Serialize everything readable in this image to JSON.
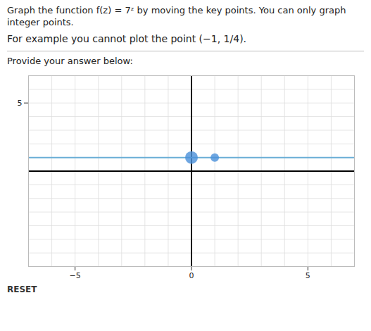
{
  "chart_data": {
    "type": "scatter",
    "title": "Graph the function f(z) = 7ᶻ by moving the key points. You can only graph integer points.",
    "subtitle": "For example you cannot plot the point (−1, 1/4).",
    "annotations": [
      "Provide your answer below:",
      "RESET"
    ],
    "series": [
      {
        "type": "line",
        "color": "#6aaed6",
        "x": [
          -7,
          7
        ],
        "values": [
          1,
          1
        ]
      },
      {
        "type": "scatter",
        "color": "#4a90d9",
        "x": [
          0,
          1
        ],
        "values": [
          1,
          1
        ]
      }
    ],
    "xlim": [
      -7,
      7
    ],
    "ylim": [
      -7,
      7
    ],
    "xticks": [
      -5,
      0,
      5
    ],
    "yticks": [
      5
    ],
    "grid": true
  }
}
